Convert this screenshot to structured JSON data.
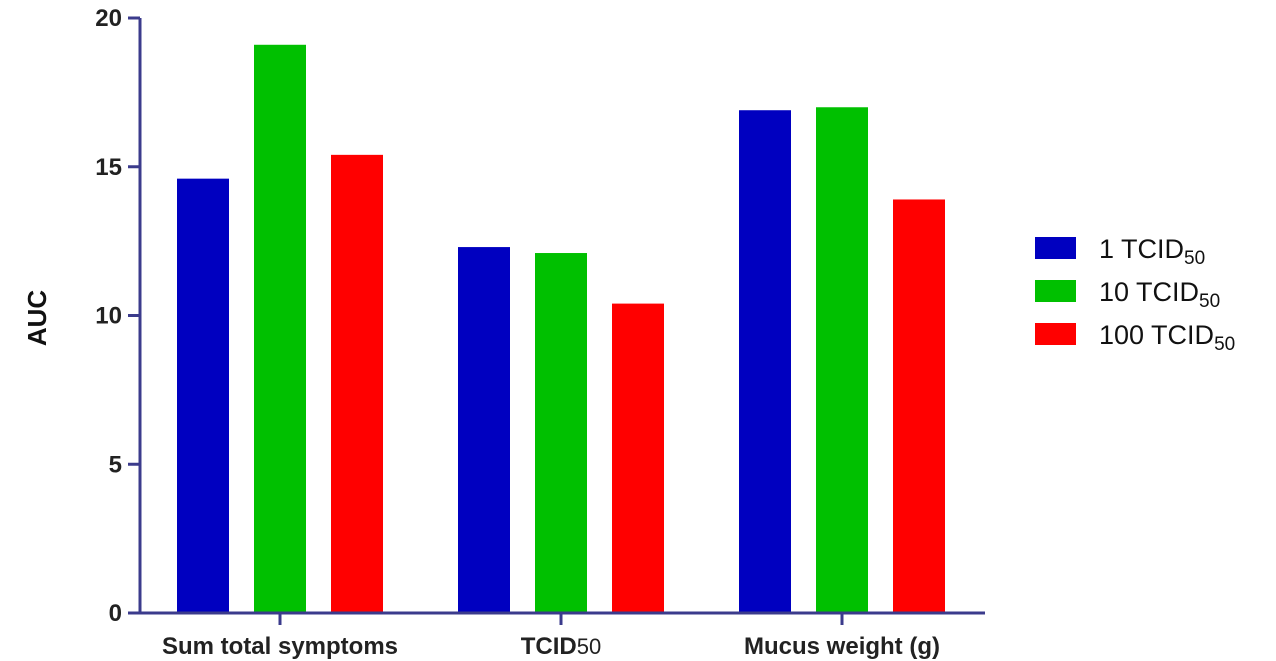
{
  "chart_data": {
    "type": "bar",
    "ylabel": "AUC",
    "xlabel": "",
    "ylim": [
      0,
      20
    ],
    "yticks": [
      0,
      5,
      10,
      15,
      20
    ],
    "categories": [
      {
        "label": "Sum total symptoms",
        "sub": ""
      },
      {
        "label": "TCID",
        "sub": "50"
      },
      {
        "label": "Mucus weight (g)",
        "sub": ""
      }
    ],
    "series": [
      {
        "name": "1 TCID",
        "name_sub": "50",
        "color": "#0000c0",
        "values": [
          14.6,
          12.3,
          16.9
        ]
      },
      {
        "name": "10 TCID",
        "name_sub": "50",
        "color": "#00c000",
        "values": [
          19.1,
          12.1,
          17.0
        ]
      },
      {
        "name": "100 TCID",
        "name_sub": "50",
        "color": "#ff0000",
        "values": [
          15.4,
          10.4,
          13.9
        ]
      }
    ],
    "legend_position": "right",
    "axis_color": "#3b3b8c",
    "grid": false
  }
}
